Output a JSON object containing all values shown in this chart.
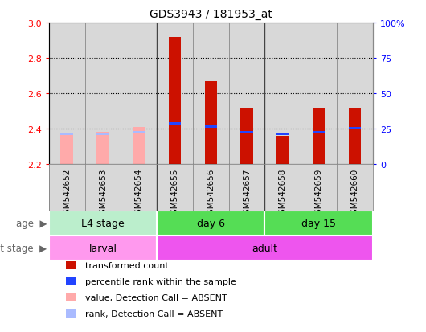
{
  "title": "GDS3943 / 181953_at",
  "samples": [
    "GSM542652",
    "GSM542653",
    "GSM542654",
    "GSM542655",
    "GSM542656",
    "GSM542657",
    "GSM542658",
    "GSM542659",
    "GSM542660"
  ],
  "transformed_count": [
    null,
    null,
    null,
    2.92,
    2.67,
    2.52,
    2.36,
    2.52,
    2.52
  ],
  "percentile_rank": [
    null,
    null,
    null,
    2.43,
    2.41,
    2.38,
    2.37,
    2.38,
    2.4
  ],
  "absent_value": [
    2.37,
    2.38,
    2.41,
    null,
    null,
    null,
    null,
    null,
    null
  ],
  "absent_rank": [
    2.37,
    2.37,
    2.38,
    null,
    null,
    null,
    null,
    null,
    null
  ],
  "ylim": [
    2.2,
    3.0
  ],
  "yticks_left": [
    2.2,
    2.4,
    2.6,
    2.8,
    3.0
  ],
  "yticks_right": [
    0,
    25,
    50,
    75,
    100
  ],
  "yticks_right_labels": [
    "0",
    "25",
    "50",
    "75",
    "100%"
  ],
  "bar_color_present": "#CC1100",
  "bar_color_absent": "#FFAAAA",
  "rank_color_present": "#2244FF",
  "rank_color_absent": "#AABBFF",
  "bar_width": 0.35,
  "legend_items": [
    {
      "label": "transformed count",
      "color": "#CC1100"
    },
    {
      "label": "percentile rank within the sample",
      "color": "#2244FF"
    },
    {
      "label": "value, Detection Call = ABSENT",
      "color": "#FFAAAA"
    },
    {
      "label": "rank, Detection Call = ABSENT",
      "color": "#AABBFF"
    }
  ],
  "ybase": 2.2,
  "age_groups": [
    {
      "label": "L4 stage",
      "start": 0,
      "end": 3,
      "color": "#BBEECC"
    },
    {
      "label": "day 6",
      "start": 3,
      "end": 6,
      "color": "#55DD55"
    },
    {
      "label": "day 15",
      "start": 6,
      "end": 9,
      "color": "#55DD55"
    }
  ],
  "dev_groups": [
    {
      "label": "larval",
      "start": 0,
      "end": 3,
      "color": "#FF99EE"
    },
    {
      "label": "adult",
      "start": 3,
      "end": 9,
      "color": "#EE55EE"
    }
  ]
}
